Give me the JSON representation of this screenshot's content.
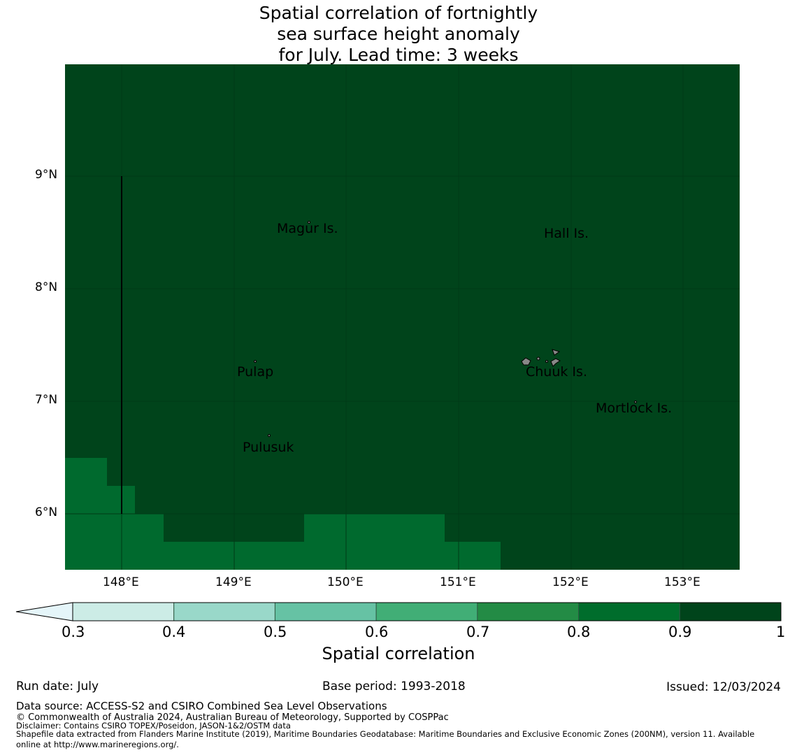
{
  "title_lines": [
    "Spatial correlation of fortnightly",
    "sea surface height anomaly",
    "for July. Lead time: 3 weeks"
  ],
  "map": {
    "lon_range": [
      147.5,
      153.5
    ],
    "lat_range": [
      5.5,
      10.0
    ],
    "lon_ticks": [
      "148°E",
      "149°E",
      "150°E",
      "151°E",
      "152°E",
      "153°E"
    ],
    "lat_ticks": [
      "9°N",
      "8°N",
      "7°N",
      "6°N"
    ],
    "background_value_class": "0.9-1",
    "lower_value_class": "0.8-0.9",
    "places": [
      {
        "name": "Magur Is."
      },
      {
        "name": "Hall Is."
      },
      {
        "name": "Pulap"
      },
      {
        "name": "Chuuk Is."
      },
      {
        "name": "Mortlock Is."
      },
      {
        "name": "Pulusuk"
      }
    ]
  },
  "colorbar": {
    "ticks": [
      "0.3",
      "0.4",
      "0.5",
      "0.6",
      "0.7",
      "0.8",
      "0.9",
      "1"
    ],
    "colors": [
      "#ccece6",
      "#99d8c9",
      "#66c2a4",
      "#41ae76",
      "#238b45",
      "#006d2c",
      "#00441b"
    ],
    "extend_color": "#e5f5f9",
    "label": "Spatial correlation"
  },
  "footer": {
    "run_date": "Run date: July",
    "base_period": "Base period: 1993-2018",
    "issued": "Issued: 12/03/2024",
    "data_source": "Data source: ACCESS-S2 and CSIRO Combined Sea Level Observations",
    "copyright": "© Commonwealth of Australia 2024, Australian Bureau of Meteorology, Supported by COSPPac",
    "disclaimer": "Disclaimer: Contains CSIRO TOPEX/Poseidon, JASON-1&2/OSTM data",
    "shapefile_1": "Shapefile data extracted from Flanders Marine Institute (2019), Maritime Boundaries Geodatabase: Maritime Boundaries and Exclusive Economic Zones (200NM), version 11. Available",
    "shapefile_2": "online at http://www.marineregions.org/."
  }
}
